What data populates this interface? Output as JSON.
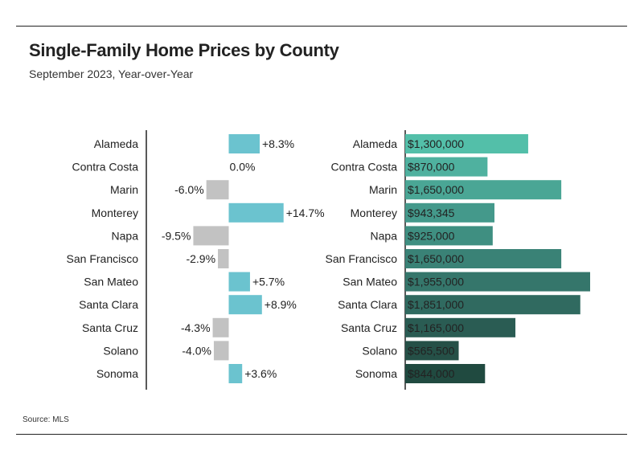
{
  "title": "Single-Family Home Prices by County",
  "subtitle": "September 2023, Year-over-Year",
  "source": "Source: MLS",
  "chart_data": [
    {
      "type": "bar",
      "orientation": "horizontal",
      "categories": [
        "Alameda",
        "Contra Costa",
        "Marin",
        "Monterey",
        "Napa",
        "San Francisco",
        "San Mateo",
        "Santa Clara",
        "Santa Cruz",
        "Solano",
        "Sonoma"
      ],
      "values": [
        8.3,
        0.0,
        -6.0,
        14.7,
        -9.5,
        -2.9,
        5.7,
        8.9,
        -4.3,
        -4.0,
        3.6
      ],
      "labels": [
        "+8.3%",
        "0.0%",
        "-6.0%",
        "+14.7%",
        "-9.5%",
        "-2.9%",
        "+5.7%",
        "+8.9%",
        "-4.3%",
        "-4.0%",
        "+3.6%"
      ],
      "unit": "%",
      "colors": {
        "positive": "#6bc3cf",
        "negative": "#c2c2c2"
      },
      "grid": false
    },
    {
      "type": "bar",
      "orientation": "horizontal",
      "categories": [
        "Alameda",
        "Contra Costa",
        "Marin",
        "Monterey",
        "Napa",
        "San Francisco",
        "San Mateo",
        "Santa Clara",
        "Santa Cruz",
        "Solano",
        "Sonoma"
      ],
      "values": [
        1300000,
        870000,
        1650000,
        943345,
        925000,
        1650000,
        1955000,
        1851000,
        1165000,
        565500,
        844000
      ],
      "labels": [
        "$1,300,000",
        "$870,000",
        "$1,650,000",
        "$943,345",
        "$925,000",
        "$1,650,000",
        "$1,955,000",
        "$1,851,000",
        "$1,165,000",
        "$565,500",
        "$844,000"
      ],
      "unit": "USD",
      "colors": [
        "#53bfa9",
        "#4fb19f",
        "#4aa695",
        "#44998b",
        "#3f8f81",
        "#3a8276",
        "#35766b",
        "#306a60",
        "#2a5c53",
        "#255047",
        "#204a40"
      ],
      "label_text_colors": [
        "#222222",
        "#222222",
        "#222222",
        "#ffffff",
        "#ffffff",
        "#ffffff",
        "#ffffff",
        "#ffffff",
        "#ffffff",
        "#ffffff",
        "#ffffff"
      ],
      "grid": false
    }
  ]
}
